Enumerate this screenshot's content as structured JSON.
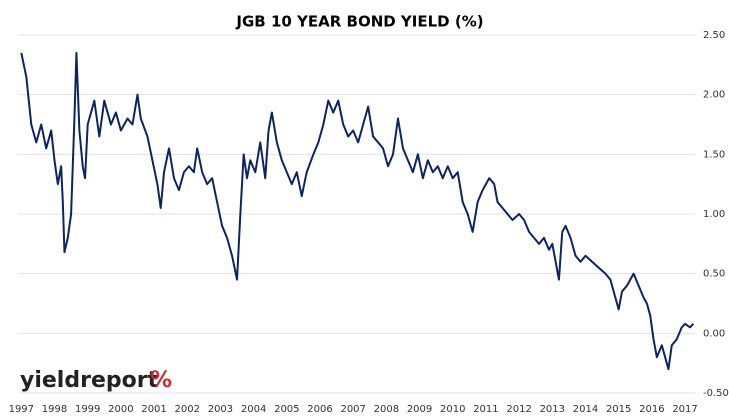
{
  "chart_data": {
    "type": "line",
    "title": "JGB 10 YEAR BOND YIELD (%)",
    "watermark": {
      "text": "yieldreport",
      "symbol": "%"
    },
    "x": [
      1997.0,
      1997.15,
      1997.3,
      1997.45,
      1997.6,
      1997.75,
      1997.9,
      1998.0,
      1998.1,
      1998.2,
      1998.25,
      1998.3,
      1998.4,
      1998.5,
      1998.6,
      1998.66,
      1998.75,
      1998.85,
      1998.92,
      1999.0,
      1999.2,
      1999.35,
      1999.5,
      1999.7,
      1999.85,
      2000.0,
      2000.2,
      2000.35,
      2000.5,
      2000.6,
      2000.8,
      2000.95,
      2001.1,
      2001.2,
      2001.3,
      2001.45,
      2001.6,
      2001.75,
      2001.9,
      2002.05,
      2002.2,
      2002.3,
      2002.45,
      2002.6,
      2002.75,
      2002.9,
      2003.05,
      2003.2,
      2003.35,
      2003.5,
      2003.6,
      2003.7,
      2003.8,
      2003.9,
      2004.05,
      2004.2,
      2004.35,
      2004.45,
      2004.55,
      2004.7,
      2004.85,
      2005.0,
      2005.15,
      2005.3,
      2005.45,
      2005.6,
      2005.8,
      2005.95,
      2006.1,
      2006.25,
      2006.4,
      2006.55,
      2006.7,
      2006.85,
      2007.0,
      2007.15,
      2007.3,
      2007.45,
      2007.6,
      2007.75,
      2007.9,
      2008.05,
      2008.2,
      2008.35,
      2008.5,
      2008.65,
      2008.8,
      2008.95,
      2009.1,
      2009.25,
      2009.4,
      2009.55,
      2009.7,
      2009.85,
      2010.0,
      2010.15,
      2010.3,
      2010.45,
      2010.6,
      2010.75,
      2010.9,
      2011.1,
      2011.25,
      2011.35,
      2011.5,
      2011.65,
      2011.8,
      2012.0,
      2012.15,
      2012.3,
      2012.45,
      2012.6,
      2012.75,
      2012.9,
      2013.0,
      2013.1,
      2013.2,
      2013.3,
      2013.4,
      2013.55,
      2013.7,
      2013.85,
      2014.0,
      2014.2,
      2014.4,
      2014.6,
      2014.75,
      2014.9,
      2015.0,
      2015.1,
      2015.25,
      2015.45,
      2015.6,
      2015.75,
      2015.85,
      2015.95,
      2016.05,
      2016.15,
      2016.3,
      2016.45,
      2016.5,
      2016.6,
      2016.75,
      2016.9,
      2017.0,
      2017.15,
      2017.25
    ],
    "series": [
      {
        "name": "JGB 10 Year",
        "color": "#0d2460",
        "values": [
          2.35,
          2.15,
          1.75,
          1.6,
          1.75,
          1.55,
          1.7,
          1.45,
          1.25,
          1.4,
          1.1,
          0.68,
          0.8,
          1.0,
          1.8,
          2.35,
          1.7,
          1.4,
          1.3,
          1.75,
          1.95,
          1.65,
          1.95,
          1.75,
          1.85,
          1.7,
          1.8,
          1.75,
          2.0,
          1.8,
          1.65,
          1.45,
          1.25,
          1.05,
          1.35,
          1.55,
          1.3,
          1.2,
          1.35,
          1.4,
          1.35,
          1.55,
          1.35,
          1.25,
          1.3,
          1.1,
          0.9,
          0.8,
          0.65,
          0.45,
          1.0,
          1.5,
          1.3,
          1.45,
          1.35,
          1.6,
          1.3,
          1.7,
          1.85,
          1.6,
          1.45,
          1.35,
          1.25,
          1.35,
          1.15,
          1.35,
          1.5,
          1.6,
          1.75,
          1.95,
          1.85,
          1.95,
          1.75,
          1.65,
          1.7,
          1.6,
          1.75,
          1.9,
          1.65,
          1.6,
          1.55,
          1.4,
          1.5,
          1.8,
          1.55,
          1.45,
          1.35,
          1.5,
          1.3,
          1.45,
          1.35,
          1.4,
          1.3,
          1.4,
          1.3,
          1.35,
          1.1,
          1.0,
          0.85,
          1.1,
          1.2,
          1.3,
          1.25,
          1.1,
          1.05,
          1.0,
          0.95,
          1.0,
          0.95,
          0.85,
          0.8,
          0.75,
          0.8,
          0.7,
          0.75,
          0.6,
          0.45,
          0.85,
          0.9,
          0.8,
          0.65,
          0.6,
          0.65,
          0.6,
          0.55,
          0.5,
          0.45,
          0.3,
          0.2,
          0.35,
          0.4,
          0.5,
          0.4,
          0.3,
          0.25,
          0.15,
          -0.05,
          -0.2,
          -0.1,
          -0.25,
          -0.3,
          -0.1,
          -0.05,
          0.05,
          0.08,
          0.05,
          0.08
        ]
      }
    ],
    "xlim": [
      1996.9,
      2017.3
    ],
    "xticks": [
      1997,
      1998,
      1999,
      2000,
      2001,
      2002,
      2003,
      2004,
      2005,
      2006,
      2007,
      2008,
      2009,
      2010,
      2011,
      2012,
      2013,
      2014,
      2015,
      2016,
      2017
    ],
    "ylim": [
      -0.5,
      2.5
    ],
    "yticks": [
      {
        "value": 2.5,
        "label": "2.50"
      },
      {
        "value": 2.0,
        "label": "2.00"
      },
      {
        "value": 1.5,
        "label": "1.50"
      },
      {
        "value": 1.0,
        "label": "1.00"
      },
      {
        "value": 0.5,
        "label": "0.50"
      },
      {
        "value": 0,
        "label": "0.00"
      },
      {
        "value": -0.5,
        "label": "-0.50"
      }
    ],
    "grid": true
  }
}
